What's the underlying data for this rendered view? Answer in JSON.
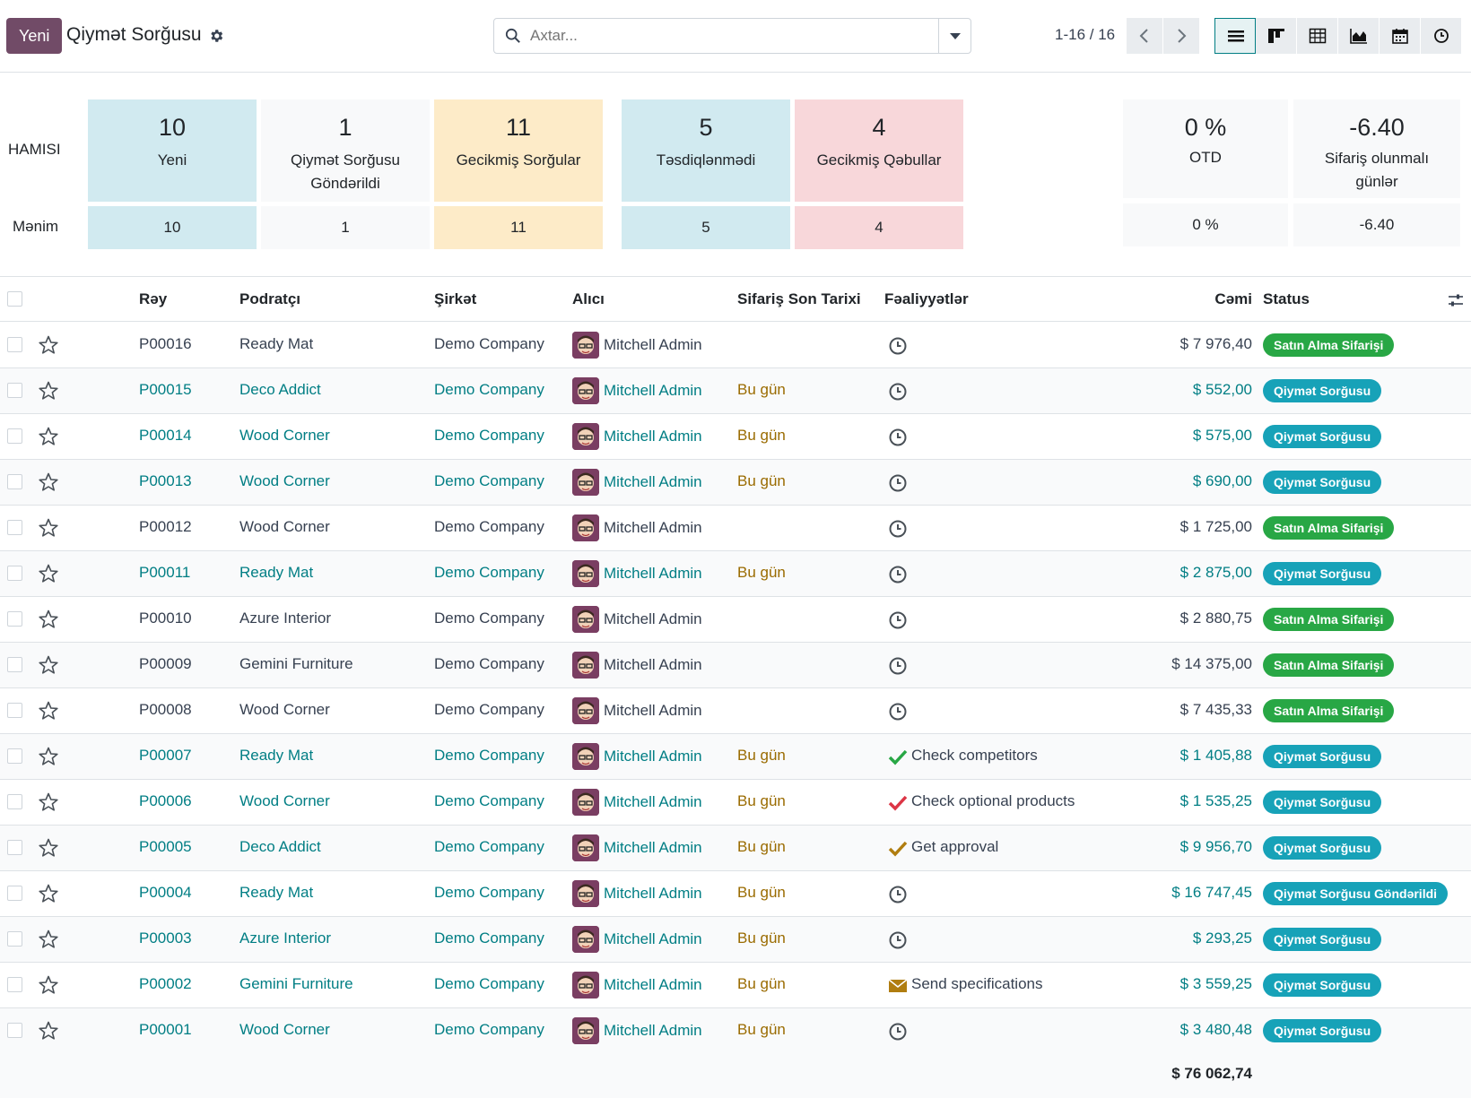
{
  "control_panel": {
    "new_label": "Yeni",
    "title": "Qiymət Sorğusu",
    "search_placeholder": "Axtar...",
    "pager": "1-16 / 16"
  },
  "dashboard": {
    "row_all_label": "HAMISI",
    "row_mine_label": "Mənim",
    "tiles": [
      {
        "num": "10",
        "label": "Yeni",
        "mine": "10",
        "color": "#d1eaf0"
      },
      {
        "num": "1",
        "label": "Qiymət Sorğusu Göndərildi",
        "mine": "1",
        "color": "#f8f9fa"
      },
      {
        "num": "11",
        "label": "Gecikmiş Sorğular",
        "mine": "11",
        "color": "#fdebc8"
      },
      {
        "num": "5",
        "label": "Təsdiqlənmədi",
        "mine": "5",
        "color": "#d1eaf0"
      },
      {
        "num": "4",
        "label": "Gecikmiş Qəbullar",
        "mine": "4",
        "color": "#f8d7da"
      }
    ],
    "kpis": [
      {
        "num": "0 %",
        "label": "OTD",
        "mine": "0 %"
      },
      {
        "num": "-6.40",
        "label": "Sifariş olunmalı günlər",
        "mine": "-6.40"
      }
    ]
  },
  "table": {
    "headers": {
      "ref": "Rəy",
      "vendor": "Podratçı",
      "company": "Şirkət",
      "buyer": "Alıcı",
      "deadline": "Sifariş Son Tarixi",
      "activities": "Fəaliyyətlər",
      "total": "Cəmi",
      "status": "Status"
    },
    "rows": [
      {
        "ref": "P00016",
        "vendor": "Ready Mat",
        "company": "Demo Company",
        "buyer": "Mitchell Admin",
        "deadline": "",
        "activity": "",
        "activity_icon": "clock-icon",
        "total": "$ 7 976,40",
        "status": "Satın Alma Sifarişi",
        "status_type": "green",
        "highlight": false
      },
      {
        "ref": "P00015",
        "vendor": "Deco Addict",
        "company": "Demo Company",
        "buyer": "Mitchell Admin",
        "deadline": "Bu gün",
        "activity": "",
        "activity_icon": "clock-icon",
        "total": "$ 552,00",
        "status": "Qiymət Sorğusu",
        "status_type": "teal",
        "highlight": true
      },
      {
        "ref": "P00014",
        "vendor": "Wood Corner",
        "company": "Demo Company",
        "buyer": "Mitchell Admin",
        "deadline": "Bu gün",
        "activity": "",
        "activity_icon": "clock-icon",
        "total": "$ 575,00",
        "status": "Qiymət Sorğusu",
        "status_type": "teal",
        "highlight": true
      },
      {
        "ref": "P00013",
        "vendor": "Wood Corner",
        "company": "Demo Company",
        "buyer": "Mitchell Admin",
        "deadline": "Bu gün",
        "activity": "",
        "activity_icon": "clock-icon",
        "total": "$ 690,00",
        "status": "Qiymət Sorğusu",
        "status_type": "teal",
        "highlight": true
      },
      {
        "ref": "P00012",
        "vendor": "Wood Corner",
        "company": "Demo Company",
        "buyer": "Mitchell Admin",
        "deadline": "",
        "activity": "",
        "activity_icon": "clock-icon",
        "total": "$ 1 725,00",
        "status": "Satın Alma Sifarişi",
        "status_type": "green",
        "highlight": false
      },
      {
        "ref": "P00011",
        "vendor": "Ready Mat",
        "company": "Demo Company",
        "buyer": "Mitchell Admin",
        "deadline": "Bu gün",
        "activity": "",
        "activity_icon": "clock-icon",
        "total": "$ 2 875,00",
        "status": "Qiymət Sorğusu",
        "status_type": "teal",
        "highlight": true
      },
      {
        "ref": "P00010",
        "vendor": "Azure Interior",
        "company": "Demo Company",
        "buyer": "Mitchell Admin",
        "deadline": "",
        "activity": "",
        "activity_icon": "clock-icon",
        "total": "$ 2 880,75",
        "status": "Satın Alma Sifarişi",
        "status_type": "green",
        "highlight": false
      },
      {
        "ref": "P00009",
        "vendor": "Gemini Furniture",
        "company": "Demo Company",
        "buyer": "Mitchell Admin",
        "deadline": "",
        "activity": "",
        "activity_icon": "clock-icon",
        "total": "$ 14 375,00",
        "status": "Satın Alma Sifarişi",
        "status_type": "green",
        "highlight": false
      },
      {
        "ref": "P00008",
        "vendor": "Wood Corner",
        "company": "Demo Company",
        "buyer": "Mitchell Admin",
        "deadline": "",
        "activity": "",
        "activity_icon": "clock-icon",
        "total": "$ 7 435,33",
        "status": "Satın Alma Sifarişi",
        "status_type": "green",
        "highlight": false
      },
      {
        "ref": "P00007",
        "vendor": "Ready Mat",
        "company": "Demo Company",
        "buyer": "Mitchell Admin",
        "deadline": "Bu gün",
        "activity": "Check competitors",
        "activity_icon": "check-green-icon",
        "total": "$ 1 405,88",
        "status": "Qiymət Sorğusu",
        "status_type": "teal",
        "highlight": true
      },
      {
        "ref": "P00006",
        "vendor": "Wood Corner",
        "company": "Demo Company",
        "buyer": "Mitchell Admin",
        "deadline": "Bu gün",
        "activity": "Check optional products",
        "activity_icon": "check-red-icon",
        "total": "$ 1 535,25",
        "status": "Qiymət Sorğusu",
        "status_type": "teal",
        "highlight": true
      },
      {
        "ref": "P00005",
        "vendor": "Deco Addict",
        "company": "Demo Company",
        "buyer": "Mitchell Admin",
        "deadline": "Bu gün",
        "activity": "Get approval",
        "activity_icon": "check-orange-icon",
        "total": "$ 9 956,70",
        "status": "Qiymət Sorğusu",
        "status_type": "teal",
        "highlight": true
      },
      {
        "ref": "P00004",
        "vendor": "Ready Mat",
        "company": "Demo Company",
        "buyer": "Mitchell Admin",
        "deadline": "Bu gün",
        "activity": "",
        "activity_icon": "clock-icon",
        "total": "$ 16 747,45",
        "status": "Qiymət Sorğusu Göndərildi",
        "status_type": "teal",
        "highlight": true
      },
      {
        "ref": "P00003",
        "vendor": "Azure Interior",
        "company": "Demo Company",
        "buyer": "Mitchell Admin",
        "deadline": "Bu gün",
        "activity": "",
        "activity_icon": "clock-icon",
        "total": "$ 293,25",
        "status": "Qiymət Sorğusu",
        "status_type": "teal",
        "highlight": true
      },
      {
        "ref": "P00002",
        "vendor": "Gemini Furniture",
        "company": "Demo Company",
        "buyer": "Mitchell Admin",
        "deadline": "Bu gün",
        "activity": "Send specifications",
        "activity_icon": "envelope-icon",
        "total": "$ 3 559,25",
        "status": "Qiymət Sorğusu",
        "status_type": "teal",
        "highlight": true
      },
      {
        "ref": "P00001",
        "vendor": "Wood Corner",
        "company": "Demo Company",
        "buyer": "Mitchell Admin",
        "deadline": "Bu gün",
        "activity": "",
        "activity_icon": "clock-icon",
        "total": "$ 3 480,48",
        "status": "Qiymət Sorğusu",
        "status_type": "teal",
        "highlight": true
      }
    ],
    "grand_total": "$ 76 062,74"
  },
  "colors": {
    "brand": "#714B67",
    "link": "#017e84",
    "today": "#9a6b00",
    "status_green": "#28a745",
    "status_teal": "#17a2b8"
  }
}
